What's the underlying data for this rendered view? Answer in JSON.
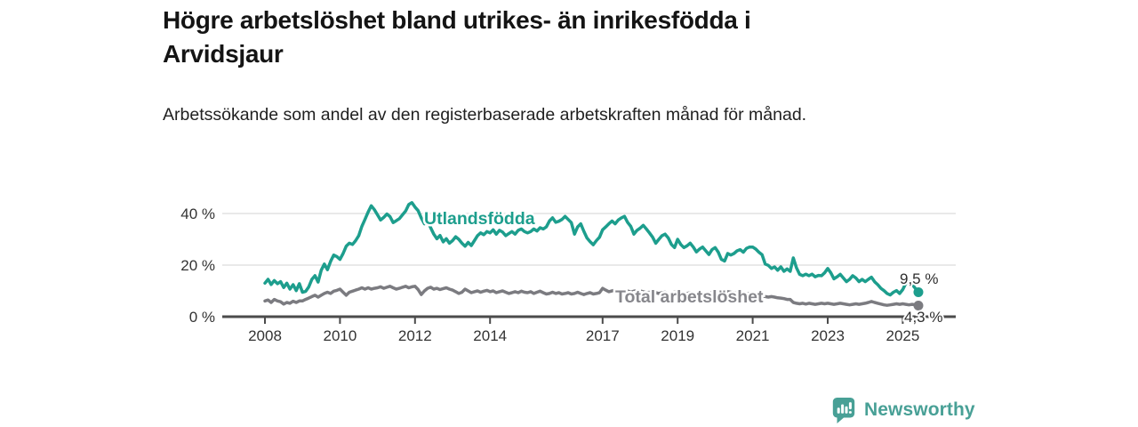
{
  "header": {
    "title": "Högre arbetslöshet bland utrikes- än inrikesfödda i\nArvidsjaur",
    "subtitle": "Arbetssökande som andel av den registerbaserade arbetskraften månad för månad."
  },
  "footer": {
    "brand": "Newsworthy"
  },
  "colors": {
    "accent_teal": "#1d9e8d",
    "line_gray": "#7b7b80",
    "axis": "#4b4b4b",
    "gridline": "#dcdcdc",
    "tick_text": "#333333",
    "value_text": "#2e2e2e",
    "brand_teal": "#48a096"
  },
  "chart_data": {
    "type": "line",
    "title": "Högre arbetslöshet bland utrikes- än inrikesfödda i Arvidsjaur",
    "unit": "%",
    "x_start_year": 2008,
    "x_interval": "monthly",
    "x_ticks": [
      2008,
      2010,
      2012,
      2014,
      2017,
      2019,
      2021,
      2023,
      2025
    ],
    "y_ticks": [
      {
        "value": 0,
        "label": "0 %"
      },
      {
        "value": 20,
        "label": "20 %"
      },
      {
        "value": 40,
        "label": "40 %"
      }
    ],
    "ylim": [
      0,
      46
    ],
    "grid": "horizontal",
    "legend_position": "inline-labels",
    "series": [
      {
        "name": "Utlandsfödda",
        "color": "#1d9e8d",
        "label_color": "#1d9e8d",
        "end_label": "9,5 %",
        "end_value": 9.5,
        "values": [
          13.0,
          14.5,
          12.5,
          14.0,
          12.8,
          13.6,
          11.3,
          13.0,
          10.7,
          12.4,
          10.1,
          12.8,
          9.5,
          9.8,
          11.5,
          14.5,
          15.9,
          13.4,
          18.0,
          20.4,
          18.2,
          21.5,
          23.9,
          23.3,
          22.2,
          24.5,
          27.3,
          28.5,
          28.0,
          29.5,
          31.4,
          35.0,
          37.7,
          40.6,
          43.0,
          41.5,
          39.5,
          37.5,
          38.5,
          39.8,
          38.8,
          36.5,
          37.2,
          38.0,
          39.5,
          41.0,
          43.5,
          44.2,
          42.5,
          41.1,
          38.3,
          36.0,
          37.1,
          34.5,
          32.0,
          30.2,
          31.5,
          29.0,
          30.2,
          28.5,
          29.5,
          31.0,
          30.0,
          28.5,
          27.3,
          28.8,
          27.6,
          29.5,
          31.4,
          32.5,
          31.8,
          33.0,
          32.5,
          33.7,
          32.0,
          33.5,
          32.8,
          31.4,
          32.2,
          33.0,
          32.0,
          33.5,
          34.0,
          33.0,
          32.5,
          33.0,
          34.0,
          33.2,
          34.5,
          34.0,
          34.8,
          37.1,
          38.3,
          36.6,
          37.0,
          37.7,
          38.9,
          37.7,
          36.5,
          32.0,
          34.8,
          36.0,
          33.1,
          30.5,
          29.1,
          27.9,
          29.5,
          30.8,
          33.7,
          34.8,
          36.0,
          37.1,
          36.0,
          37.5,
          38.3,
          38.9,
          36.6,
          35.0,
          32.0,
          33.5,
          34.3,
          35.4,
          34.0,
          32.5,
          30.8,
          28.5,
          30.0,
          31.4,
          32.0,
          30.5,
          28.0,
          26.8,
          30.0,
          28.0,
          26.8,
          27.5,
          28.5,
          27.0,
          25.1,
          26.2,
          27.0,
          25.5,
          24.1,
          26.0,
          26.8,
          25.0,
          22.2,
          21.6,
          24.5,
          23.9,
          24.5,
          25.5,
          26.0,
          25.0,
          26.5,
          27.0,
          27.0,
          26.2,
          25.0,
          24.0,
          20.4,
          19.9,
          18.7,
          19.3,
          18.0,
          19.3,
          17.6,
          18.5,
          17.6,
          22.8,
          19.0,
          16.4,
          15.9,
          16.5,
          15.9,
          16.5,
          15.5,
          16.0,
          15.9,
          17.0,
          18.7,
          17.0,
          14.7,
          15.5,
          16.4,
          15.0,
          13.6,
          14.5,
          15.9,
          15.0,
          13.6,
          14.5,
          13.6,
          14.5,
          15.3,
          13.5,
          12.4,
          11.0,
          10.1,
          9.0,
          8.4,
          9.5,
          10.1,
          9.0,
          10.5,
          13.0,
          13.6,
          12.5,
          11.0,
          9.5
        ]
      },
      {
        "name": "Total arbetslöshet",
        "color": "#7b7b80",
        "label_color": "#87878c",
        "end_label": "4,3 %",
        "end_value": 4.3,
        "values": [
          6.1,
          6.5,
          5.5,
          6.7,
          6.1,
          5.8,
          4.9,
          5.5,
          5.2,
          6.0,
          5.5,
          6.1,
          6.1,
          6.7,
          7.2,
          7.8,
          8.3,
          7.6,
          8.3,
          9.0,
          9.5,
          9.0,
          9.9,
          10.2,
          10.7,
          9.5,
          8.3,
          9.5,
          9.9,
          10.3,
          10.7,
          11.2,
          10.7,
          11.2,
          10.7,
          11.0,
          11.2,
          11.6,
          11.0,
          11.4,
          11.8,
          11.2,
          10.7,
          11.0,
          11.4,
          11.8,
          11.2,
          11.6,
          11.8,
          10.5,
          8.6,
          10.0,
          11.0,
          11.4,
          10.7,
          11.0,
          10.5,
          10.9,
          11.2,
          10.7,
          10.3,
          9.7,
          9.0,
          9.5,
          10.7,
          10.0,
          9.3,
          9.7,
          10.0,
          9.5,
          9.9,
          10.2,
          9.7,
          10.0,
          9.3,
          9.7,
          10.0,
          9.5,
          9.0,
          9.3,
          9.7,
          9.3,
          9.9,
          9.5,
          9.3,
          9.7,
          9.0,
          9.5,
          9.9,
          9.3,
          8.8,
          9.0,
          9.5,
          9.0,
          9.3,
          8.8,
          9.0,
          9.3,
          8.8,
          9.0,
          9.5,
          9.0,
          8.6,
          9.0,
          9.3,
          8.8,
          9.0,
          9.3,
          11.0,
          10.3,
          9.7,
          10.0,
          10.3,
          9.7,
          9.3,
          9.7,
          10.0,
          9.5,
          9.9,
          10.2,
          10.0,
          9.7,
          9.3,
          9.5,
          9.7,
          9.3,
          9.0,
          9.3,
          9.5,
          9.0,
          9.3,
          9.5,
          9.3,
          9.0,
          8.8,
          9.0,
          9.3,
          8.8,
          8.6,
          8.8,
          9.0,
          8.8,
          9.0,
          9.3,
          9.5,
          9.3,
          9.7,
          10.0,
          9.7,
          9.5,
          9.3,
          9.0,
          9.3,
          9.0,
          8.8,
          9.0,
          8.8,
          8.6,
          8.3,
          8.0,
          7.8,
          7.6,
          7.8,
          7.6,
          7.3,
          7.2,
          7.0,
          6.7,
          6.7,
          5.5,
          5.2,
          5.0,
          5.2,
          4.9,
          5.2,
          5.0,
          4.8,
          5.0,
          5.2,
          5.0,
          5.2,
          5.0,
          4.8,
          5.0,
          5.2,
          5.0,
          4.8,
          4.6,
          4.8,
          5.0,
          4.8,
          5.0,
          5.2,
          5.5,
          5.9,
          5.5,
          5.2,
          4.9,
          4.6,
          4.4,
          4.6,
          4.8,
          5.0,
          4.8,
          5.0,
          4.8,
          4.6,
          4.8,
          4.6,
          4.3
        ]
      }
    ]
  }
}
